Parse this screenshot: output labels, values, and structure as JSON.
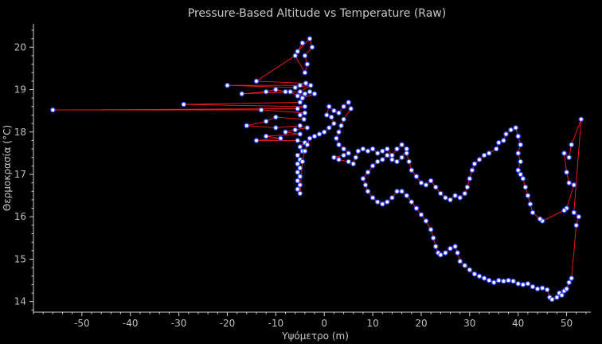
{
  "chart_data": {
    "type": "scatter",
    "title": "Pressure-Based Altitude vs Temperature (Raw)",
    "xlabel": "Υψόμετρο (m)",
    "ylabel": "Θερμοκρασία (°C)",
    "xlim": [
      -60,
      55
    ],
    "ylim": [
      13.75,
      20.55
    ],
    "x_ticks": [
      -50,
      -40,
      -30,
      -20,
      -10,
      0,
      10,
      20,
      30,
      40,
      50
    ],
    "y_ticks": [
      14,
      15,
      16,
      17,
      18,
      19,
      20
    ],
    "grid": false,
    "connected_line": true,
    "colors": {
      "line": "#ff1a1a",
      "marker_edge": "#3a4dff",
      "marker_fill": "#ffffff",
      "background": "#000000",
      "axis": "#d0d0d0",
      "text": "#c8c8c8"
    },
    "series": [
      {
        "points": [
          [
            -4.5,
            20.1
          ],
          [
            -5.5,
            19.9
          ],
          [
            -3.0,
            20.2
          ],
          [
            -2.5,
            20.0
          ],
          [
            -4.0,
            19.8
          ],
          [
            -3.5,
            19.6
          ],
          [
            -4.0,
            19.4
          ],
          [
            -6.0,
            19.8
          ],
          [
            -14.0,
            19.2
          ],
          [
            -3.8,
            19.15
          ],
          [
            -5.0,
            19.1
          ],
          [
            -20.0,
            19.1
          ],
          [
            -6.0,
            19.05
          ],
          [
            -2.8,
            19.1
          ],
          [
            -5.0,
            18.95
          ],
          [
            -17.0,
            18.9
          ],
          [
            -12.0,
            18.95
          ],
          [
            -10.0,
            19.0
          ],
          [
            -8.0,
            18.95
          ],
          [
            -7.0,
            18.95
          ],
          [
            -5.5,
            18.85
          ],
          [
            -4.0,
            18.9
          ],
          [
            -3.0,
            18.95
          ],
          [
            -2.0,
            18.9
          ],
          [
            -4.5,
            18.8
          ],
          [
            -5.0,
            18.7
          ],
          [
            -29.0,
            18.65
          ],
          [
            -4.0,
            18.6
          ],
          [
            -5.5,
            18.55
          ],
          [
            -56.0,
            18.52
          ],
          [
            -13.0,
            18.52
          ],
          [
            -4.0,
            18.45
          ],
          [
            -5.0,
            18.4
          ],
          [
            -4.2,
            18.3
          ],
          [
            -10.0,
            18.35
          ],
          [
            -12.0,
            18.25
          ],
          [
            -16.0,
            18.15
          ],
          [
            -10.0,
            18.1
          ],
          [
            -5.0,
            18.15
          ],
          [
            -3.5,
            18.1
          ],
          [
            -6.0,
            18.05
          ],
          [
            -8.0,
            18.0
          ],
          [
            -5.0,
            17.95
          ],
          [
            -12.0,
            17.9
          ],
          [
            -9.0,
            17.85
          ],
          [
            -14.0,
            17.8
          ],
          [
            -5.5,
            17.8
          ],
          [
            -4.0,
            17.75
          ],
          [
            -5.0,
            17.65
          ],
          [
            -4.5,
            17.55
          ],
          [
            -5.5,
            17.45
          ],
          [
            -5.0,
            17.35
          ],
          [
            -5.5,
            17.25
          ],
          [
            -5.0,
            17.15
          ],
          [
            -5.5,
            17.05
          ],
          [
            -5.0,
            16.95
          ],
          [
            -5.5,
            16.85
          ],
          [
            -5.0,
            16.75
          ],
          [
            -5.5,
            16.65
          ],
          [
            -5.0,
            16.55
          ],
          [
            -4.5,
            17.3
          ],
          [
            -4.0,
            17.55
          ],
          [
            -3.5,
            17.7
          ],
          [
            -3.0,
            17.85
          ],
          [
            -2.0,
            17.9
          ],
          [
            -1.0,
            17.95
          ],
          [
            0.0,
            18.0
          ],
          [
            1.0,
            18.1
          ],
          [
            2.0,
            18.2
          ],
          [
            1.5,
            18.35
          ],
          [
            0.5,
            18.4
          ],
          [
            1.0,
            18.6
          ],
          [
            2.0,
            18.5
          ],
          [
            3.0,
            18.45
          ],
          [
            4.0,
            18.6
          ],
          [
            5.0,
            18.7
          ],
          [
            5.5,
            18.55
          ],
          [
            4.0,
            18.3
          ],
          [
            3.5,
            18.15
          ],
          [
            3.0,
            18.0
          ],
          [
            2.5,
            17.85
          ],
          [
            3.0,
            17.7
          ],
          [
            4.0,
            17.6
          ],
          [
            5.0,
            17.5
          ],
          [
            4.0,
            17.45
          ],
          [
            2.0,
            17.4
          ],
          [
            3.0,
            17.35
          ],
          [
            5.0,
            17.3
          ],
          [
            6.0,
            17.25
          ],
          [
            6.5,
            17.4
          ],
          [
            7.0,
            17.55
          ],
          [
            8.0,
            17.6
          ],
          [
            9.0,
            17.55
          ],
          [
            10.0,
            17.6
          ],
          [
            11.0,
            17.5
          ],
          [
            12.0,
            17.55
          ],
          [
            13.0,
            17.6
          ],
          [
            14.0,
            17.45
          ],
          [
            15.0,
            17.6
          ],
          [
            16.0,
            17.7
          ],
          [
            17.0,
            17.6
          ],
          [
            16.0,
            17.4
          ],
          [
            15.0,
            17.3
          ],
          [
            14.0,
            17.35
          ],
          [
            13.0,
            17.45
          ],
          [
            12.0,
            17.35
          ],
          [
            11.0,
            17.3
          ],
          [
            10.0,
            17.2
          ],
          [
            9.0,
            17.05
          ],
          [
            8.0,
            16.9
          ],
          [
            8.5,
            16.75
          ],
          [
            9.0,
            16.6
          ],
          [
            10.0,
            16.45
          ],
          [
            11.0,
            16.35
          ],
          [
            12.0,
            16.3
          ],
          [
            13.0,
            16.35
          ],
          [
            14.0,
            16.45
          ],
          [
            15.0,
            16.6
          ],
          [
            16.0,
            16.6
          ],
          [
            17.0,
            16.5
          ],
          [
            18.0,
            16.35
          ],
          [
            19.0,
            16.2
          ],
          [
            20.0,
            16.05
          ],
          [
            21.0,
            15.9
          ],
          [
            22.0,
            15.7
          ],
          [
            22.5,
            15.5
          ],
          [
            23.0,
            15.3
          ],
          [
            23.5,
            15.15
          ],
          [
            24.0,
            15.1
          ],
          [
            25.0,
            15.15
          ],
          [
            26.0,
            15.25
          ],
          [
            27.0,
            15.3
          ],
          [
            27.5,
            15.15
          ],
          [
            28.0,
            14.95
          ],
          [
            29.0,
            14.85
          ],
          [
            30.0,
            14.75
          ],
          [
            31.0,
            14.65
          ],
          [
            32.0,
            14.6
          ],
          [
            33.0,
            14.55
          ],
          [
            34.0,
            14.5
          ],
          [
            35.0,
            14.45
          ],
          [
            36.0,
            14.5
          ],
          [
            37.0,
            14.48
          ],
          [
            38.0,
            14.5
          ],
          [
            39.0,
            14.48
          ],
          [
            40.0,
            14.42
          ],
          [
            41.0,
            14.4
          ],
          [
            42.0,
            14.42
          ],
          [
            43.0,
            14.35
          ],
          [
            44.0,
            14.3
          ],
          [
            45.0,
            14.32
          ],
          [
            46.0,
            14.28
          ],
          [
            46.5,
            14.1
          ],
          [
            47.0,
            14.05
          ],
          [
            48.0,
            14.1
          ],
          [
            48.5,
            14.2
          ],
          [
            49.0,
            14.15
          ],
          [
            49.5,
            14.25
          ],
          [
            50.0,
            14.3
          ],
          [
            50.5,
            14.45
          ],
          [
            51.0,
            14.55
          ],
          [
            52.0,
            15.8
          ],
          [
            52.5,
            16.0
          ],
          [
            51.5,
            16.1
          ],
          [
            53.0,
            18.3
          ],
          [
            51.0,
            17.7
          ],
          [
            50.5,
            17.4
          ],
          [
            49.5,
            17.5
          ],
          [
            50.0,
            17.05
          ],
          [
            50.5,
            16.8
          ],
          [
            51.5,
            16.75
          ],
          [
            50.0,
            16.2
          ],
          [
            49.5,
            16.15
          ],
          [
            45.0,
            15.9
          ],
          [
            44.5,
            15.95
          ],
          [
            43.0,
            16.1
          ],
          [
            42.5,
            16.3
          ],
          [
            42.0,
            16.5
          ],
          [
            41.5,
            16.7
          ],
          [
            41.0,
            16.9
          ],
          [
            40.5,
            17.0
          ],
          [
            40.0,
            17.1
          ],
          [
            40.5,
            17.3
          ],
          [
            40.0,
            17.5
          ],
          [
            40.5,
            17.7
          ],
          [
            40.0,
            17.9
          ],
          [
            39.5,
            18.1
          ],
          [
            38.5,
            18.05
          ],
          [
            37.5,
            17.95
          ],
          [
            37.0,
            17.8
          ],
          [
            36.0,
            17.75
          ],
          [
            35.5,
            17.6
          ],
          [
            34.0,
            17.5
          ],
          [
            33.0,
            17.45
          ],
          [
            32.0,
            17.35
          ],
          [
            31.0,
            17.25
          ],
          [
            30.5,
            17.1
          ],
          [
            30.0,
            16.9
          ],
          [
            29.5,
            16.7
          ],
          [
            29.0,
            16.55
          ],
          [
            28.0,
            16.45
          ],
          [
            27.0,
            16.5
          ],
          [
            26.0,
            16.4
          ],
          [
            25.0,
            16.45
          ],
          [
            24.0,
            16.55
          ],
          [
            23.0,
            16.7
          ],
          [
            22.0,
            16.85
          ],
          [
            21.0,
            16.75
          ],
          [
            20.0,
            16.8
          ],
          [
            19.0,
            16.95
          ],
          [
            18.0,
            17.1
          ],
          [
            17.5,
            17.3
          ],
          [
            17.0,
            17.5
          ]
        ]
      }
    ]
  }
}
